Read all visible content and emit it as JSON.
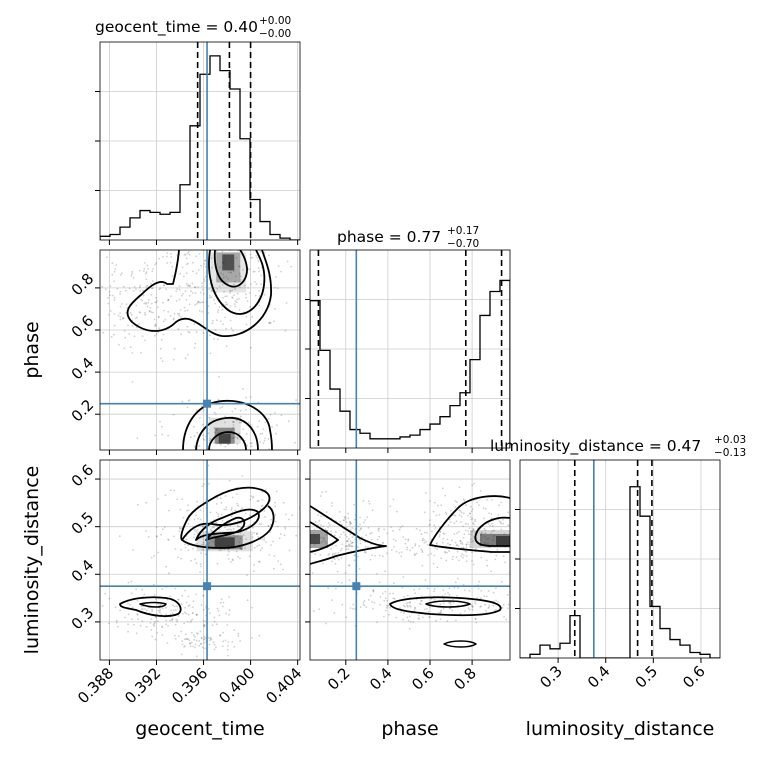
{
  "chart_data": {
    "type": "corner",
    "parameters": [
      "geocent_time",
      "phase",
      "luminosity_distance"
    ],
    "truths": {
      "geocent_time": 0.3963,
      "phase": 0.25,
      "luminosity_distance": 0.375
    },
    "titles": [
      {
        "param": "geocent_time",
        "text": "geocent_time = 0.40",
        "sup": "+0.00",
        "sub": "−0.00"
      },
      {
        "param": "phase",
        "text": "phase = 0.77",
        "sup": "+0.17",
        "sub": "−0.70"
      },
      {
        "param": "luminosity_distance",
        "text": "luminosity_distance = 0.47",
        "sup": "+0.03",
        "sub": "−0.13"
      }
    ],
    "axes": {
      "geocent_time": {
        "label": "geocent_time",
        "range": [
          0.3872,
          0.4042
        ],
        "ticks": [
          "0.388",
          "0.392",
          "0.396",
          "0.400",
          "0.404"
        ]
      },
      "phase": {
        "label": "phase",
        "range": [
          0.03,
          0.98
        ],
        "ticks": [
          "0.2",
          "0.4",
          "0.6",
          "0.8"
        ],
        "y_ticks": [
          "0.2",
          "0.4",
          "0.6",
          "0.8"
        ]
      },
      "luminosity_distance": {
        "label": "luminosity_distance",
        "range": [
          0.22,
          0.64
        ],
        "ticks": [
          "0.3",
          "0.4",
          "0.5",
          "0.6"
        ],
        "y_ticks": [
          "0.3",
          "0.4",
          "0.5",
          "0.6"
        ]
      }
    },
    "histograms": {
      "geocent_time": {
        "bin_edges": [
          0.3872,
          0.38805,
          0.3889,
          0.38975,
          0.3906,
          0.39145,
          0.3923,
          0.39315,
          0.394,
          0.39485,
          0.3957,
          0.39655,
          0.3974,
          0.39825,
          0.3991,
          0.39995,
          0.4008,
          0.40165,
          0.4025,
          0.40335,
          0.4042
        ],
        "counts": [
          0.02,
          0.03,
          0.07,
          0.12,
          0.16,
          0.15,
          0.14,
          0.15,
          0.3,
          0.62,
          0.9,
          1.0,
          0.92,
          0.82,
          0.55,
          0.22,
          0.1,
          0.03,
          0.01,
          0.0
        ],
        "quantiles": [
          0.3955,
          0.3982,
          0.4
        ]
      },
      "phase": {
        "bin_edges": [
          0.03,
          0.0775,
          0.125,
          0.1725,
          0.22,
          0.2675,
          0.315,
          0.3625,
          0.41,
          0.4575,
          0.505,
          0.5525,
          0.6,
          0.6475,
          0.695,
          0.7425,
          0.79,
          0.8375,
          0.885,
          0.9325,
          0.98
        ],
        "counts": [
          0.8,
          0.53,
          0.32,
          0.2,
          0.1,
          0.08,
          0.05,
          0.05,
          0.05,
          0.06,
          0.07,
          0.1,
          0.13,
          0.17,
          0.23,
          0.3,
          0.48,
          0.72,
          0.85,
          0.91
        ],
        "quantiles": [
          0.07,
          0.77,
          0.94
        ]
      },
      "luminosity_distance": {
        "bin_edges": [
          0.22,
          0.241,
          0.262,
          0.283,
          0.304,
          0.325,
          0.346,
          0.367,
          0.388,
          0.409,
          0.43,
          0.451,
          0.472,
          0.493,
          0.514,
          0.535,
          0.556,
          0.577,
          0.598,
          0.619,
          0.64
        ],
        "counts": [
          0.0,
          0.02,
          0.07,
          0.05,
          0.08,
          0.23,
          0.0,
          0.0,
          0.0,
          0.0,
          0.0,
          0.93,
          0.77,
          0.28,
          0.16,
          0.1,
          0.07,
          0.03,
          0.02,
          0.0
        ],
        "quantiles": [
          0.335,
          0.467,
          0.497
        ]
      }
    },
    "density_peaks_2d": {
      "phase_vs_geocent_time": [
        {
          "x": 0.3981,
          "y": 0.94
        },
        {
          "x": 0.3978,
          "y": 0.06
        }
      ],
      "luminosity_distance_vs_geocent_time": [
        {
          "x": 0.3978,
          "y": 0.465
        },
        {
          "x": 0.3914,
          "y": 0.34
        }
      ],
      "luminosity_distance_vs_phase": [
        {
          "x": 0.93,
          "y": 0.465
        },
        {
          "x": 0.06,
          "y": 0.465
        },
        {
          "x": 0.6,
          "y": 0.34
        }
      ]
    },
    "colors": {
      "truth": "#4682b4",
      "contour": "#000000",
      "density": "#333333",
      "grid": "#cccccc"
    },
    "grid": true
  }
}
